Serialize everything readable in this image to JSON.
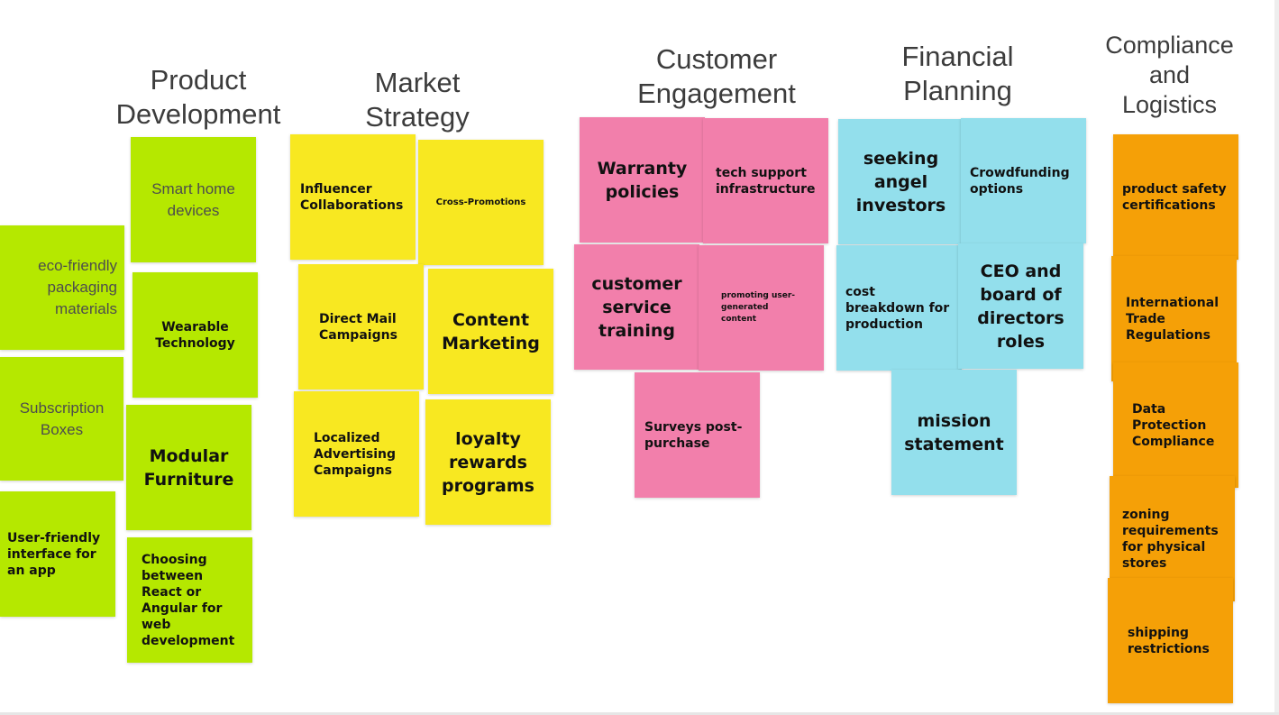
{
  "columns": {
    "product_development": {
      "title": "Product\nDevelopment",
      "notes": [
        "Smart home devices",
        "eco-friendly packaging materials",
        "Wearable Technology",
        "Subscription Boxes",
        "Modular Furniture",
        "User-friendly interface for an app",
        "Choosing between React or Angular for web development"
      ]
    },
    "market_strategy": {
      "title": "Market\nStrategy",
      "notes": [
        "Influencer Collaborations",
        "Cross-Promotions",
        "Direct Mail Campaigns",
        "Content Marketing",
        "Localized Advertising Campaigns",
        "loyalty rewards programs"
      ]
    },
    "customer_engagement": {
      "title": "Customer\nEngagement",
      "notes": [
        "Warranty policies",
        "tech support infrastructure",
        "customer service training",
        "promoting user-generated content",
        "Surveys post-purchase"
      ]
    },
    "financial_planning": {
      "title": "Financial\nPlanning",
      "notes": [
        "seeking angel investors",
        "Crowdfunding options",
        "cost breakdown for production",
        "CEO and board of directors roles",
        "mission statement"
      ]
    },
    "compliance_logistics": {
      "title": "Compliance\nand\nLogistics",
      "notes": [
        "product safety certifications",
        "International Trade Regulations",
        "Data Protection Compliance",
        "zoning requirements for physical stores",
        "shipping restrictions"
      ]
    }
  },
  "colors": {
    "green": "#b5e800",
    "yellow": "#f8e821",
    "pink": "#f27fab",
    "blue": "#93dfec",
    "orange": "#f5a007"
  }
}
